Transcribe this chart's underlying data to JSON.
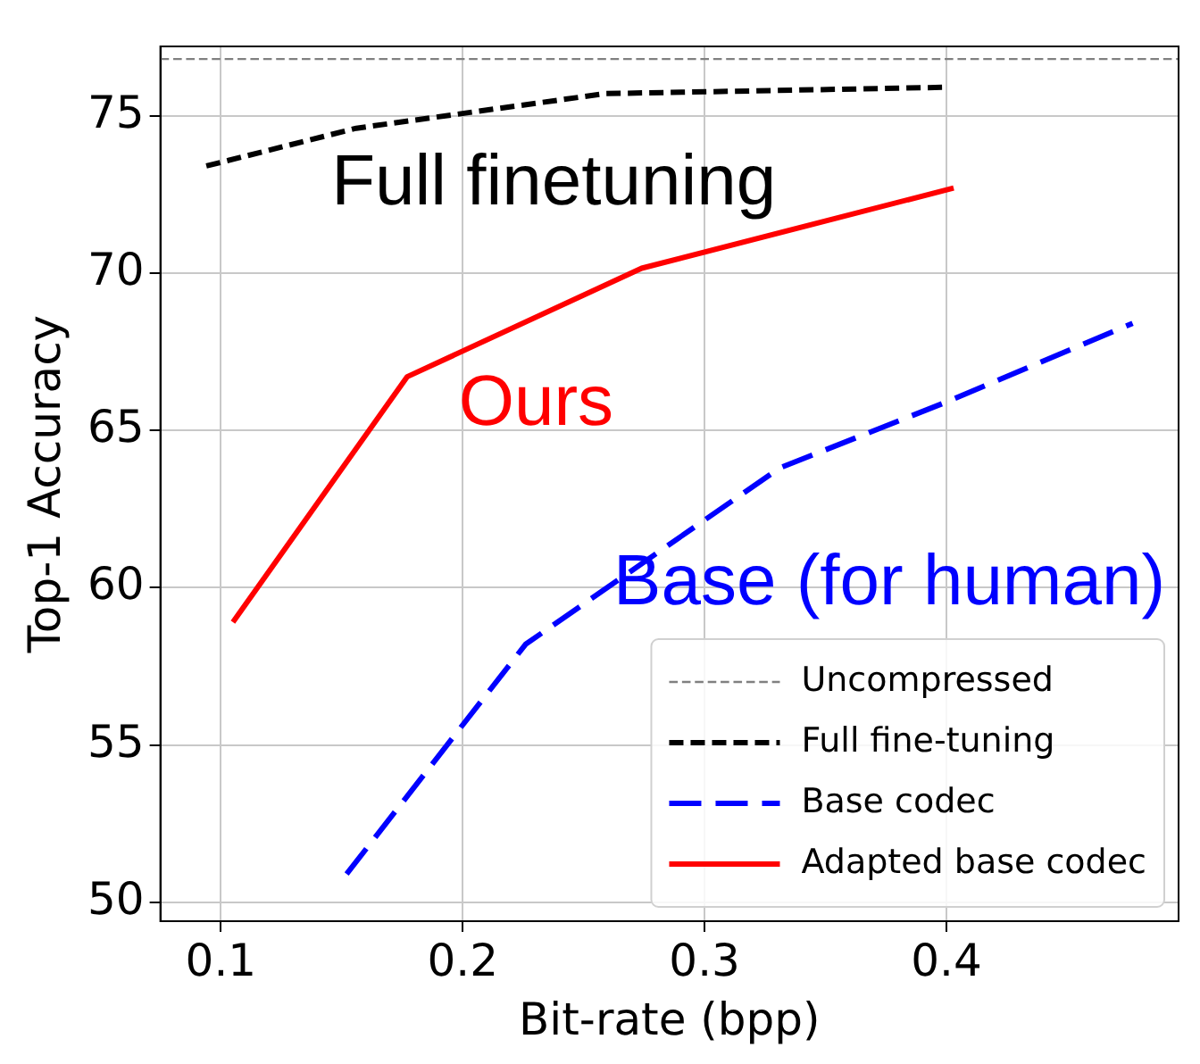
{
  "chart_data": {
    "type": "line",
    "xlabel": "Bit-rate (bpp)",
    "ylabel": "Top-1 Accuracy",
    "xlim": [
      0.075,
      0.496
    ],
    "xticks": [
      0.1,
      0.2,
      0.3,
      0.4
    ],
    "ylim": [
      49.4,
      77.2
    ],
    "yticks": [
      50,
      55,
      60,
      65,
      70,
      75
    ],
    "grid": true,
    "legend": "bottom right",
    "marker": "none",
    "ref_lines": [
      {
        "axis": "y",
        "value": 76.8,
        "label": "Uncompressed",
        "color": "#808080",
        "line_style": "dashed"
      }
    ],
    "series": [
      {
        "name": "Full fine-tuning",
        "color": "#000000",
        "line_style": "dashed",
        "x": [
          0.094,
          0.156,
          0.259,
          0.399
        ],
        "values": [
          73.4,
          74.6,
          75.7,
          75.9
        ]
      },
      {
        "name": "Base codec",
        "color": "#0000ff",
        "line_style": "dashed",
        "x": [
          0.152,
          0.226,
          0.331,
          0.4,
          0.477
        ],
        "values": [
          50.9,
          58.2,
          63.8,
          65.9,
          68.4
        ]
      },
      {
        "name": "Adapted base codec",
        "color": "#ff0000",
        "line_style": "solid",
        "x": [
          0.105,
          0.177,
          0.274,
          0.403
        ],
        "values": [
          58.9,
          66.7,
          70.15,
          72.7
        ]
      }
    ],
    "annotations": [
      "Full finetuning",
      "Base (for human)",
      "Ours"
    ]
  }
}
